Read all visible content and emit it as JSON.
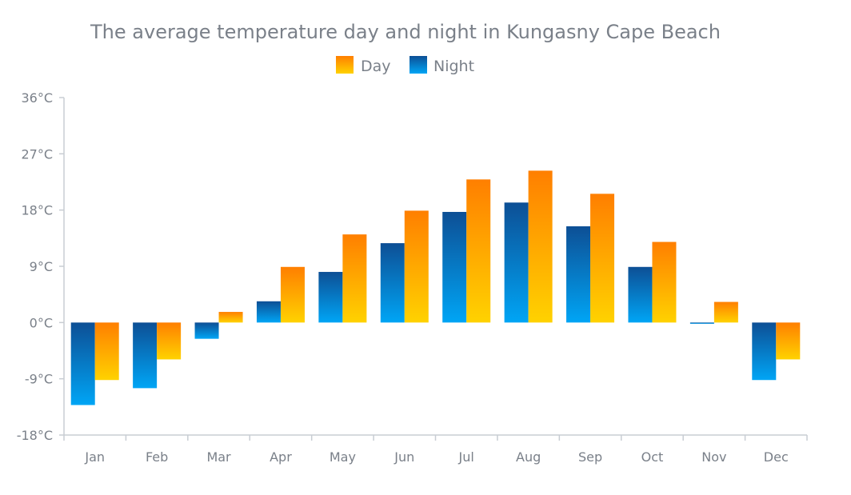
{
  "chart_data": {
    "type": "bar",
    "title": "The average temperature day and night in Kungasny Cape Beach",
    "categories": [
      "Jan",
      "Feb",
      "Mar",
      "Apr",
      "May",
      "Jun",
      "Jul",
      "Aug",
      "Sep",
      "Oct",
      "Nov",
      "Dec"
    ],
    "series": [
      {
        "name": "Night",
        "values": [
          -13.2,
          -10.5,
          -2.6,
          3.4,
          8.1,
          12.7,
          17.7,
          19.2,
          15.4,
          8.9,
          -0.2,
          -9.2
        ]
      },
      {
        "name": "Day",
        "values": [
          -9.2,
          -5.9,
          1.7,
          8.9,
          14.1,
          17.9,
          22.9,
          24.3,
          20.6,
          12.9,
          3.3,
          -5.9
        ]
      }
    ],
    "ylim": [
      -18,
      36
    ],
    "yticks": [
      "-18°C",
      "-9°C",
      "0°C",
      "9°C",
      "18°C",
      "27°C",
      "36°C"
    ],
    "ytick_values": [
      -18,
      -9,
      0,
      9,
      18,
      27,
      36
    ],
    "legend": {
      "placement": "top-center",
      "order": [
        "Day",
        "Night"
      ]
    },
    "grid": false,
    "colors": {
      "day_top": "#ff7f00",
      "day_bottom": "#ffd200",
      "night_top": "#0d4f95",
      "night_bottom": "#00a5f5"
    }
  }
}
